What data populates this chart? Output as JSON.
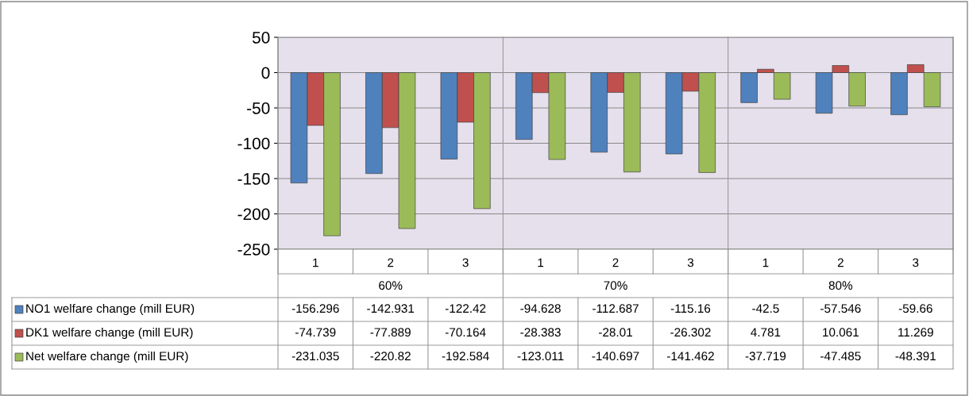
{
  "chart_data": {
    "type": "bar",
    "categories": [
      "1",
      "2",
      "3",
      "1",
      "2",
      "3",
      "1",
      "2",
      "3"
    ],
    "annotations": [
      "60%",
      "70%",
      "80%"
    ],
    "series": [
      {
        "name": "NO1 welfare change (mill EUR)",
        "color": "#4f81bd",
        "values": [
          -156.296,
          -142.931,
          -122.42,
          -94.628,
          -112.687,
          -115.16,
          -42.5,
          -57.546,
          -59.66
        ]
      },
      {
        "name": "DK1 welfare change (mill EUR)",
        "color": "#c0504d",
        "values": [
          -74.739,
          -77.889,
          -70.164,
          -28.383,
          -28.01,
          -26.302,
          4.781,
          10.061,
          11.269
        ]
      },
      {
        "name": "Net welfare change (mill EUR)",
        "color": "#9bbb59",
        "values": [
          -231.035,
          -220.82,
          -192.584,
          -123.011,
          -140.697,
          -141.462,
          -37.719,
          -47.485,
          -48.391
        ]
      }
    ],
    "ylim": [
      -250,
      50
    ],
    "yticks": [
      -250,
      -200,
      -150,
      -100,
      -50,
      0,
      50
    ],
    "grid": "y",
    "data_labels": true,
    "legend": "bottom left"
  }
}
